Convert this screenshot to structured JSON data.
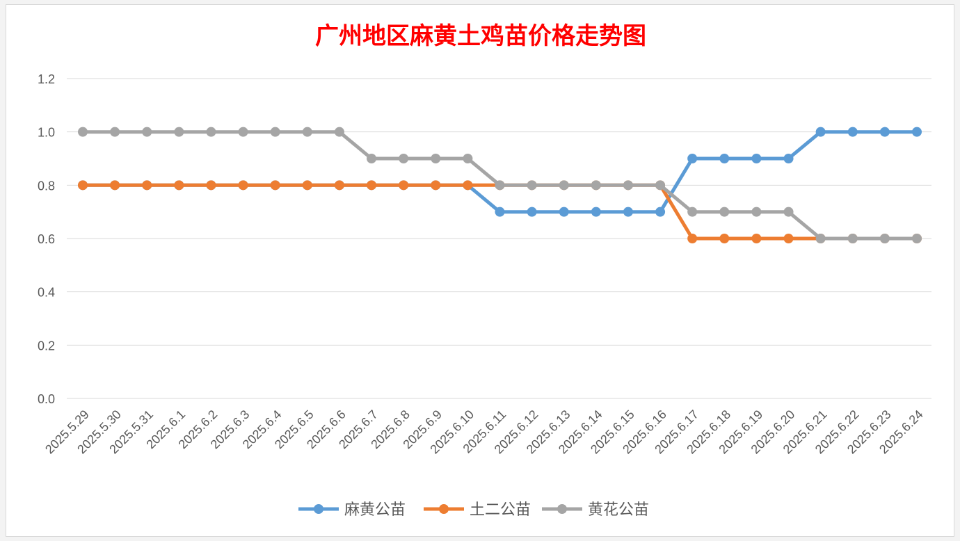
{
  "chart_data": {
    "type": "line",
    "title": "广州地区麻黄土鸡苗价格走势图",
    "xlabel": "",
    "ylabel": "",
    "categories": [
      "2025.5.29",
      "2025.5.30",
      "2025.5.31",
      "2025.6.1",
      "2025.6.2",
      "2025.6.3",
      "2025.6.4",
      "2025.6.5",
      "2025.6.6",
      "2025.6.7",
      "2025.6.8",
      "2025.6.9",
      "2025.6.10",
      "2025.6.11",
      "2025.6.12",
      "2025.6.13",
      "2025.6.14",
      "2025.6.15",
      "2025.6.16",
      "2025.6.17",
      "2025.6.18",
      "2025.6.19",
      "2025.6.20",
      "2025.6.21",
      "2025.6.22",
      "2025.6.23",
      "2025.6.24"
    ],
    "ylim": [
      0,
      1.2
    ],
    "yticks": [
      "0.0",
      "0.2",
      "0.4",
      "0.6",
      "0.8",
      "1.0",
      "1.2"
    ],
    "grid": true,
    "legend_position": "bottom",
    "series": [
      {
        "name": "麻黄公苗",
        "color": "#5b9bd5",
        "values": [
          0.8,
          0.8,
          0.8,
          0.8,
          0.8,
          0.8,
          0.8,
          0.8,
          0.8,
          0.8,
          0.8,
          0.8,
          0.8,
          0.7,
          0.7,
          0.7,
          0.7,
          0.7,
          0.7,
          0.9,
          0.9,
          0.9,
          0.9,
          1.0,
          1.0,
          1.0,
          1.0
        ]
      },
      {
        "name": "土二公苗",
        "color": "#ed7d31",
        "values": [
          0.8,
          0.8,
          0.8,
          0.8,
          0.8,
          0.8,
          0.8,
          0.8,
          0.8,
          0.8,
          0.8,
          0.8,
          0.8,
          0.8,
          0.8,
          0.8,
          0.8,
          0.8,
          0.8,
          0.6,
          0.6,
          0.6,
          0.6,
          0.6,
          0.6,
          0.6,
          0.6
        ]
      },
      {
        "name": "黄花公苗",
        "color": "#a5a5a5",
        "values": [
          1.0,
          1.0,
          1.0,
          1.0,
          1.0,
          1.0,
          1.0,
          1.0,
          1.0,
          0.9,
          0.9,
          0.9,
          0.9,
          0.8,
          0.8,
          0.8,
          0.8,
          0.8,
          0.8,
          0.7,
          0.7,
          0.7,
          0.7,
          0.6,
          0.6,
          0.6,
          0.6
        ]
      }
    ],
    "title_color": "#ff0000",
    "grid_color": "#d9d9d9",
    "tick_label_color": "#595959"
  }
}
